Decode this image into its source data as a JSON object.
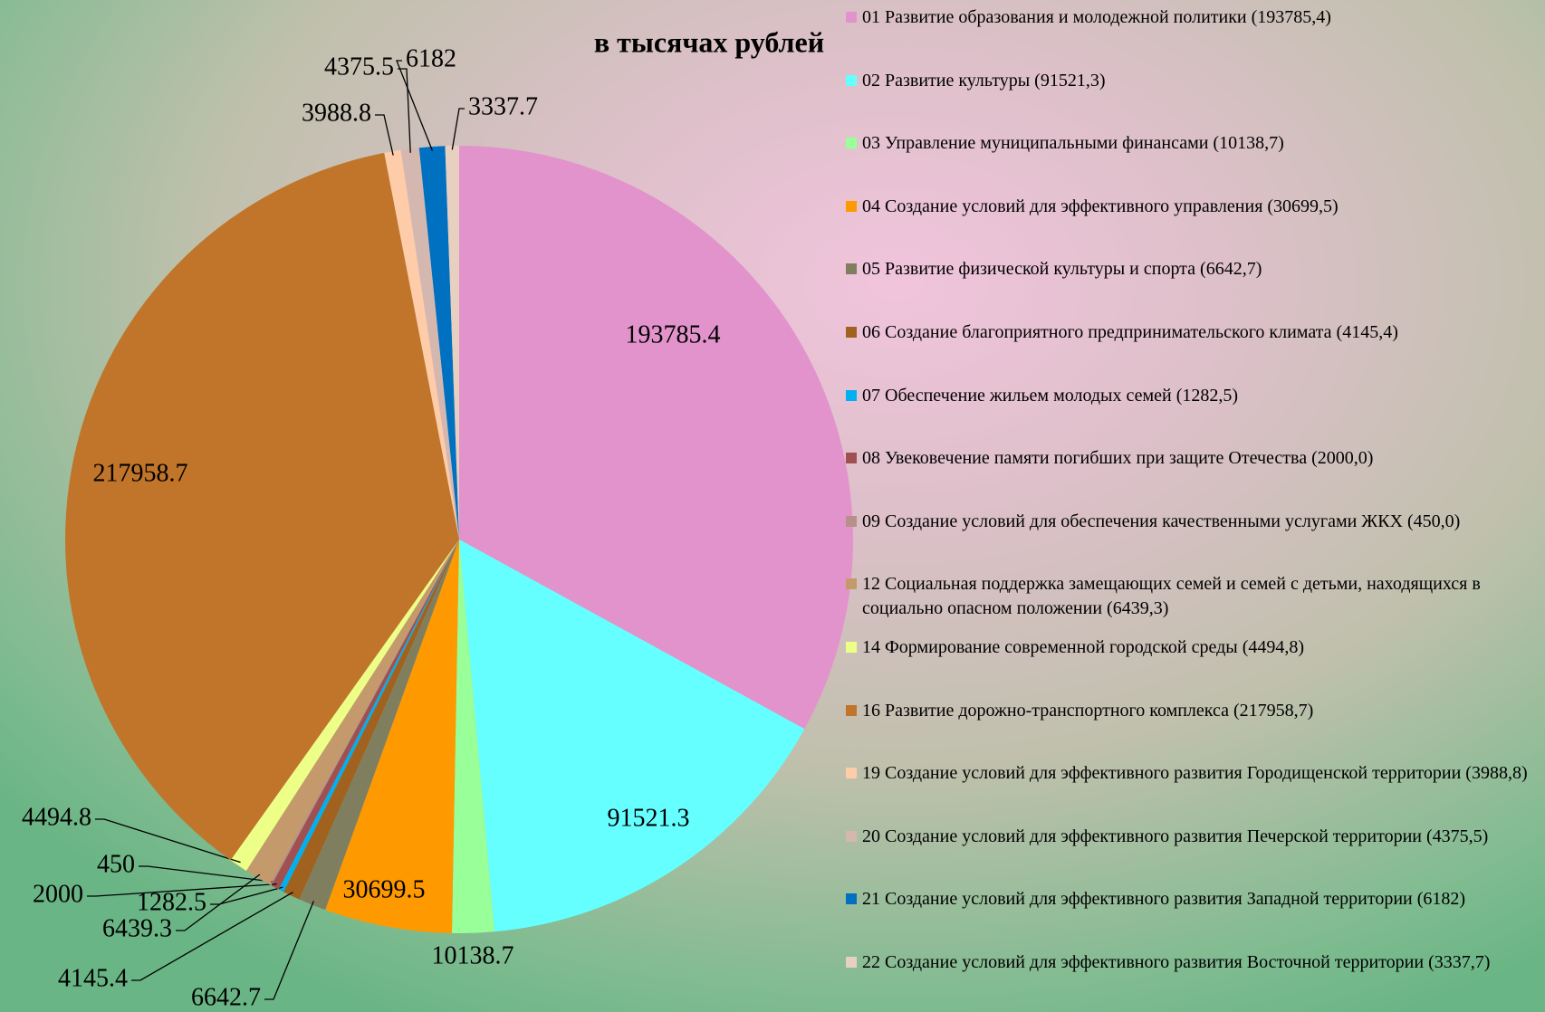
{
  "chart_data": {
    "type": "pie",
    "title": "в тысячах рублей",
    "categories": [
      "01 Развитие образования и молодежной политики (193785,4)",
      "02 Развитие культуры  (91521,3)",
      "03 Управление муниципальными финансами (10138,7)",
      "04 Создание условий для эффективного управления (30699,5)",
      "05 Развитие физической культуры и спорта (6642,7)",
      "06 Создание благоприятного предпринимательского климата (4145,4)",
      "07 Обеспечение жильем молодых семей (1282,5)",
      "08 Увековечение памяти погибших при защите Отечества (2000,0)",
      "09 Создание условий для обеспечения качественными услугами ЖКХ (450,0)",
      "12 Социальная поддержка замещающих семей и семей с детьми, находящихся в социально опасном положении (6439,3)",
      "14 Формирование современной городской среды (4494,8)",
      "16 Развитие дорожно-транспортного  комплекса (217958,7)",
      "19 Создание условий для эффективного развития Городищенской территории (3988,8)",
      "20 Создание условий для эффективного развития Печерской территории (4375,5)",
      "21 Создание условий для эффективного развития Западной территории (6182)",
      "22 Создание условий для эффективного развития Восточной территории (3337,7)"
    ],
    "values": [
      193785.4,
      91521.3,
      10138.7,
      30699.5,
      6642.7,
      4145.4,
      1282.5,
      2000,
      450,
      6439.3,
      4494.8,
      217958.7,
      3988.8,
      4375.5,
      6182,
      3337.7
    ],
    "colors": [
      "#e293cc",
      "#66ffff",
      "#99ff99",
      "#ff9900",
      "#7f7f5f",
      "#a0621e",
      "#00b0f0",
      "#a05050",
      "#b8908a",
      "#c49a6c",
      "#eeff88",
      "#c0752a",
      "#ffccaa",
      "#d4b8b0",
      "#0070c0",
      "#e8d0c0"
    ]
  }
}
